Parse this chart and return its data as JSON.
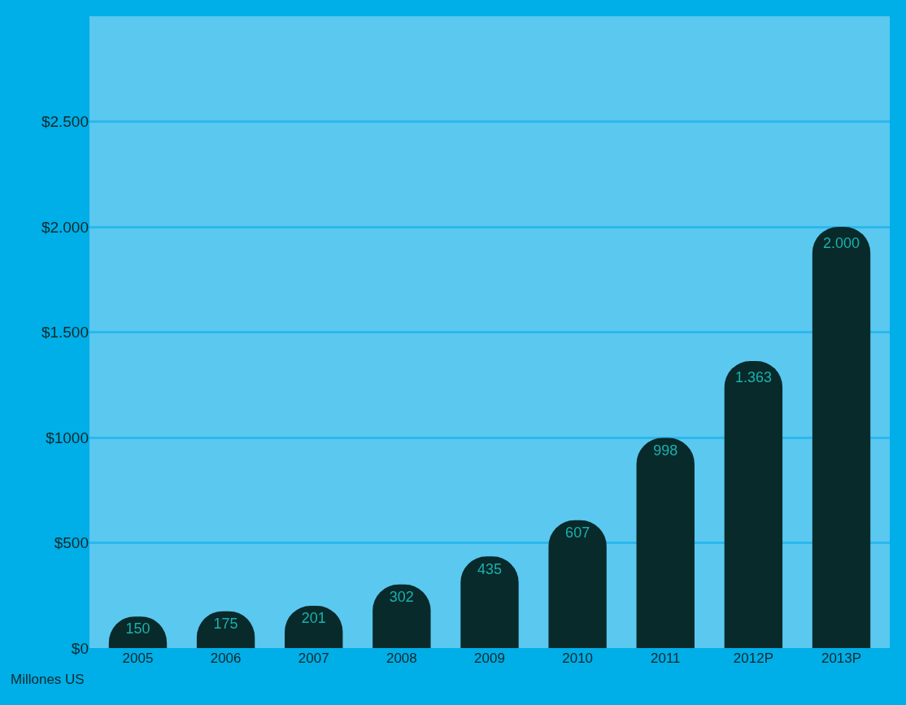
{
  "chart_data": {
    "type": "bar",
    "categories": [
      "2005",
      "2006",
      "2007",
      "2008",
      "2009",
      "2010",
      "2011",
      "2012P",
      "2013P"
    ],
    "values": [
      150,
      175,
      201,
      302,
      435,
      607,
      998,
      1363,
      2000
    ],
    "value_labels": [
      "150",
      "175",
      "201",
      "302",
      "435",
      "607",
      "998",
      "1.363",
      "2.000"
    ],
    "color": "#082a2a",
    "ylim": [
      0,
      3000
    ],
    "yticks": [
      {
        "value": 0,
        "label": "$0"
      },
      {
        "value": 500,
        "label": "$500"
      },
      {
        "value": 1000,
        "label": "$1000"
      },
      {
        "value": 1500,
        "label": "$1.500"
      },
      {
        "value": 2000,
        "label": "$2.000"
      },
      {
        "value": 2500,
        "label": "$2.500"
      }
    ],
    "grid": "y",
    "annotations": [
      "Millones US"
    ]
  }
}
